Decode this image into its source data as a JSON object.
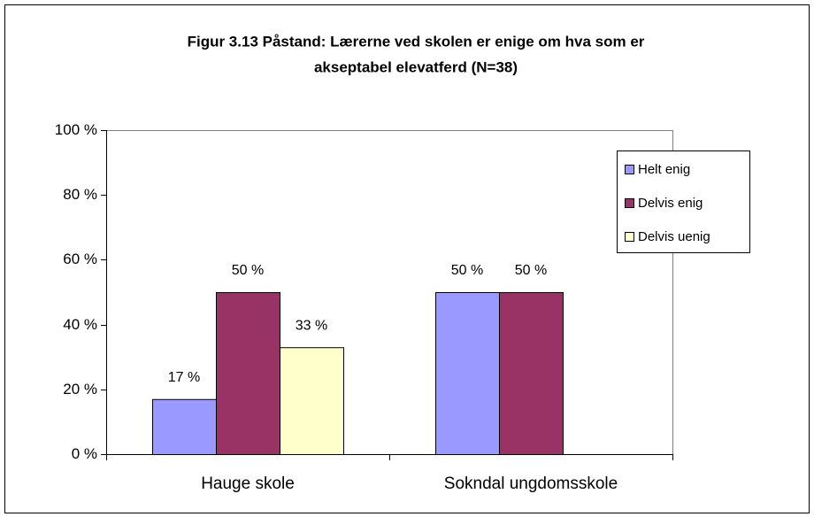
{
  "chart_data": {
    "type": "bar",
    "title": [
      "Figur 3.13  Påstand: Lærerne ved skolen er enige om hva som er",
      "akseptabel elevatferd (N=38)"
    ],
    "categories": [
      "Hauge skole",
      "Sokndal ungdomsskole"
    ],
    "series": [
      {
        "name": "Helt enig",
        "color": "#9999ff",
        "values": [
          17,
          50
        ],
        "value_labels": [
          "17 %",
          "50 %"
        ]
      },
      {
        "name": "Delvis enig",
        "color": "#993366",
        "values": [
          50,
          50
        ],
        "value_labels": [
          "50 %",
          "50 %"
        ]
      },
      {
        "name": "Delvis uenig",
        "color": "#ffffcc",
        "values": [
          33,
          null
        ],
        "value_labels": [
          "33 %",
          null
        ]
      }
    ],
    "ylim": [
      0,
      100
    ],
    "yticks": [
      {
        "value": 0,
        "label": "0 %"
      },
      {
        "value": 20,
        "label": "20 %"
      },
      {
        "value": 40,
        "label": "40 %"
      },
      {
        "value": 60,
        "label": "60 %"
      },
      {
        "value": 80,
        "label": "80 %"
      },
      {
        "value": 100,
        "label": "100 %"
      }
    ],
    "legend": "right"
  }
}
